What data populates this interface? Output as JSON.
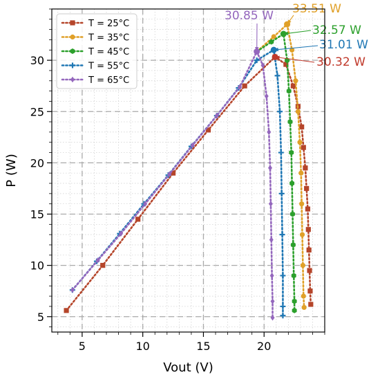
{
  "chart_data": {
    "type": "line",
    "xlabel": "Vout (V)",
    "ylabel": "P (W)",
    "xlim": [
      2.5,
      25
    ],
    "ylim": [
      3.5,
      35
    ],
    "xticks": [
      5,
      10,
      15,
      20
    ],
    "yticks": [
      5,
      10,
      15,
      20,
      25,
      30
    ],
    "grid": true,
    "legend_position": "top-left",
    "series": [
      {
        "name": "T = 25°C",
        "color": "#b5452a",
        "marker": "square",
        "points": [
          [
            3.7,
            5.6
          ],
          [
            6.7,
            10.0
          ],
          [
            9.6,
            14.5
          ],
          [
            12.5,
            19.0
          ],
          [
            15.4,
            23.2
          ],
          [
            18.4,
            27.5
          ],
          [
            20.9,
            30.32
          ],
          [
            21.8,
            29.6
          ],
          [
            22.4,
            27.5
          ],
          [
            22.8,
            25.5
          ],
          [
            23.1,
            23.5
          ],
          [
            23.25,
            21.5
          ],
          [
            23.4,
            19.5
          ],
          [
            23.5,
            17.5
          ],
          [
            23.6,
            15.5
          ],
          [
            23.65,
            13.5
          ],
          [
            23.7,
            11.5
          ],
          [
            23.75,
            9.5
          ],
          [
            23.8,
            7.5
          ],
          [
            23.85,
            6.2
          ]
        ]
      },
      {
        "name": "T = 35°C",
        "color": "#e0a028",
        "marker": "circle",
        "points": [
          [
            19.4,
            30.85
          ],
          [
            20.8,
            32.3
          ],
          [
            21.9,
            33.51
          ],
          [
            22.3,
            31.0
          ],
          [
            22.6,
            28.0
          ],
          [
            22.8,
            25.0
          ],
          [
            22.95,
            22.0
          ],
          [
            23.05,
            19.0
          ],
          [
            23.1,
            16.0
          ],
          [
            23.15,
            13.0
          ],
          [
            23.2,
            10.0
          ],
          [
            23.25,
            7.0
          ],
          [
            23.3,
            5.9
          ]
        ]
      },
      {
        "name": "T = 45°C",
        "color": "#2ca02c",
        "marker": "hexagon",
        "points": [
          [
            19.4,
            30.85
          ],
          [
            20.6,
            31.8
          ],
          [
            21.6,
            32.57
          ],
          [
            21.9,
            30.0
          ],
          [
            22.05,
            27.0
          ],
          [
            22.15,
            24.0
          ],
          [
            22.25,
            21.0
          ],
          [
            22.3,
            18.0
          ],
          [
            22.35,
            15.0
          ],
          [
            22.4,
            12.0
          ],
          [
            22.45,
            9.0
          ],
          [
            22.5,
            6.5
          ],
          [
            22.5,
            5.6
          ]
        ]
      },
      {
        "name": "T = 55°C",
        "color": "#1f77b4",
        "marker": "plus",
        "points": [
          [
            4.2,
            7.6
          ],
          [
            6.2,
            10.4
          ],
          [
            8.1,
            13.1
          ],
          [
            10.1,
            16.0
          ],
          [
            12.1,
            18.8
          ],
          [
            14.0,
            21.6
          ],
          [
            16.1,
            24.6
          ],
          [
            17.9,
            27.3
          ],
          [
            19.4,
            30.0
          ],
          [
            20.8,
            31.01
          ],
          [
            21.1,
            28.5
          ],
          [
            21.3,
            25.0
          ],
          [
            21.4,
            21.0
          ],
          [
            21.45,
            17.0
          ],
          [
            21.5,
            13.0
          ],
          [
            21.55,
            9.0
          ],
          [
            21.55,
            6.0
          ],
          [
            21.55,
            5.1
          ]
        ]
      },
      {
        "name": "T = 65°C",
        "color": "#9467bd",
        "marker": "diamond",
        "points": [
          [
            4.2,
            7.6
          ],
          [
            6.3,
            10.5
          ],
          [
            8.2,
            13.1
          ],
          [
            10.2,
            16.0
          ],
          [
            12.2,
            18.9
          ],
          [
            14.1,
            21.7
          ],
          [
            16.1,
            24.6
          ],
          [
            18.0,
            27.4
          ],
          [
            19.4,
            30.85
          ],
          [
            19.9,
            29.5
          ],
          [
            20.2,
            26.5
          ],
          [
            20.4,
            23.0
          ],
          [
            20.5,
            19.5
          ],
          [
            20.55,
            16.0
          ],
          [
            20.6,
            12.5
          ],
          [
            20.65,
            9.0
          ],
          [
            20.7,
            6.5
          ],
          [
            20.7,
            4.9
          ]
        ]
      }
    ],
    "annotations": [
      {
        "text": "30.85 W",
        "color": "#9467bd",
        "x": 19.4,
        "y": 30.85
      },
      {
        "text": "33.51 W",
        "color": "#e0a028",
        "x": 21.9,
        "y": 33.51
      },
      {
        "text": "32.57 W",
        "color": "#2ca02c",
        "x": 21.6,
        "y": 32.57
      },
      {
        "text": "31.01 W",
        "color": "#1f77b4",
        "x": 20.8,
        "y": 31.01
      },
      {
        "text": "30.32 W",
        "color": "#c0392b",
        "x": 20.9,
        "y": 30.32
      }
    ]
  }
}
